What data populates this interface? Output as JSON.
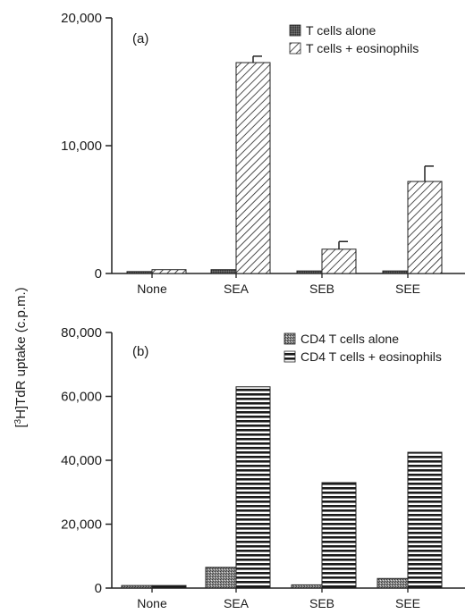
{
  "chart_data": [
    {
      "type": "bar",
      "panel_label": "(a)",
      "categories": [
        "None",
        "SEA",
        "SEB",
        "SEE"
      ],
      "series": [
        {
          "name": "T cells alone",
          "values": [
            150,
            300,
            200,
            200
          ],
          "pattern": "solid-dark"
        },
        {
          "name": "T cells + eosinophils",
          "values": [
            300,
            16500,
            1900,
            7200
          ],
          "errors": [
            0,
            500,
            600,
            1200
          ],
          "pattern": "diagonal-hatch"
        }
      ],
      "yticks": [
        "20,000",
        "10,000",
        "0"
      ],
      "ylim": [
        0,
        20000
      ],
      "legend_position": "top-right"
    },
    {
      "type": "bar",
      "panel_label": "(b)",
      "categories": [
        "None",
        "SEA",
        "SEB",
        "SEE"
      ],
      "series": [
        {
          "name": "CD4 T cells alone",
          "values": [
            800,
            6500,
            1000,
            3000
          ],
          "pattern": "stipple-gray"
        },
        {
          "name": "CD4 T cells + eosinophils",
          "values": [
            800,
            63000,
            33000,
            42500
          ],
          "pattern": "horizontal-stripes"
        }
      ],
      "yticks": [
        "80,000",
        "60,000",
        "40,000",
        "20,000",
        "0"
      ],
      "ylim": [
        0,
        80000
      ],
      "legend_position": "top-right"
    }
  ],
  "ylabel_prefix": "[",
  "ylabel_sup": "3",
  "ylabel_rest": "H]TdR uptake (c.p.m.)"
}
